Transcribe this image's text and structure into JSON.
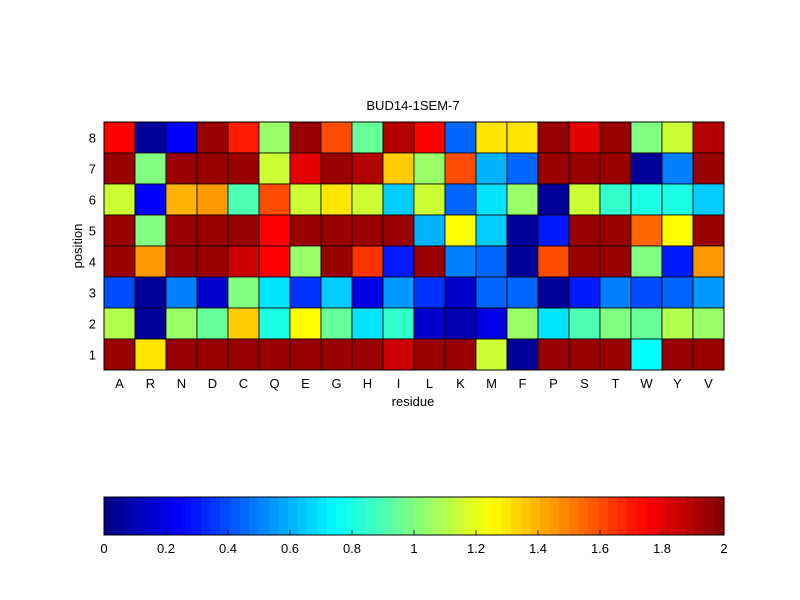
{
  "chart_data": {
    "type": "heatmap",
    "title": "BUD14-1SEM-7",
    "xlabel": "residue",
    "ylabel": "position",
    "x_categories": [
      "A",
      "R",
      "N",
      "D",
      "C",
      "Q",
      "E",
      "G",
      "H",
      "I",
      "L",
      "K",
      "M",
      "F",
      "P",
      "S",
      "T",
      "W",
      "Y",
      "V"
    ],
    "y_categories": [
      "8",
      "7",
      "6",
      "5",
      "4",
      "3",
      "2",
      "1"
    ],
    "values": [
      [
        1.75,
        0.05,
        0.25,
        1.95,
        1.7,
        1.05,
        1.95,
        1.6,
        0.95,
        1.9,
        1.75,
        0.45,
        1.3,
        1.3,
        1.95,
        1.8,
        1.95,
        1.0,
        1.15,
        1.9
      ],
      [
        1.95,
        1.0,
        1.95,
        1.95,
        1.95,
        1.15,
        1.8,
        1.95,
        1.9,
        1.35,
        1.05,
        1.6,
        0.6,
        0.45,
        1.95,
        1.95,
        1.95,
        0.05,
        0.5,
        1.95
      ],
      [
        1.15,
        0.25,
        1.4,
        1.45,
        0.9,
        1.6,
        1.15,
        1.3,
        1.15,
        0.65,
        1.15,
        0.45,
        0.7,
        1.05,
        0.05,
        1.15,
        0.85,
        0.8,
        0.8,
        0.65
      ],
      [
        1.95,
        1.0,
        1.95,
        1.95,
        1.95,
        1.75,
        1.95,
        1.95,
        1.95,
        1.95,
        0.6,
        1.25,
        0.65,
        0.05,
        0.3,
        1.95,
        1.95,
        1.55,
        1.25,
        1.95
      ],
      [
        1.95,
        1.45,
        1.95,
        1.95,
        1.85,
        1.75,
        1.05,
        1.95,
        1.65,
        0.3,
        1.95,
        0.5,
        0.45,
        0.05,
        1.6,
        1.95,
        1.95,
        1.0,
        0.3,
        1.45
      ],
      [
        0.4,
        0.05,
        0.5,
        0.15,
        1.0,
        0.7,
        0.35,
        0.65,
        0.2,
        0.55,
        0.35,
        0.15,
        0.45,
        0.45,
        0.05,
        0.3,
        0.5,
        0.4,
        0.45,
        0.55
      ],
      [
        1.1,
        0.05,
        1.05,
        0.95,
        1.35,
        0.8,
        1.25,
        0.95,
        0.7,
        0.85,
        0.15,
        0.1,
        0.2,
        1.05,
        0.7,
        0.9,
        1.0,
        0.95,
        1.1,
        1.05
      ],
      [
        1.95,
        1.3,
        1.95,
        1.95,
        1.95,
        1.95,
        1.95,
        1.95,
        1.95,
        1.85,
        1.95,
        1.95,
        1.15,
        0.05,
        1.95,
        1.95,
        1.95,
        0.75,
        1.95,
        1.95
      ]
    ],
    "colormap": "jet",
    "colorbar": {
      "ticks": [
        "0",
        "0.2",
        "0.4",
        "0.6",
        "0.8",
        "1",
        "1.2",
        "1.4",
        "1.6",
        "1.8",
        "2"
      ],
      "range": [
        0,
        2
      ],
      "orientation": "horizontal"
    },
    "grid": false
  }
}
